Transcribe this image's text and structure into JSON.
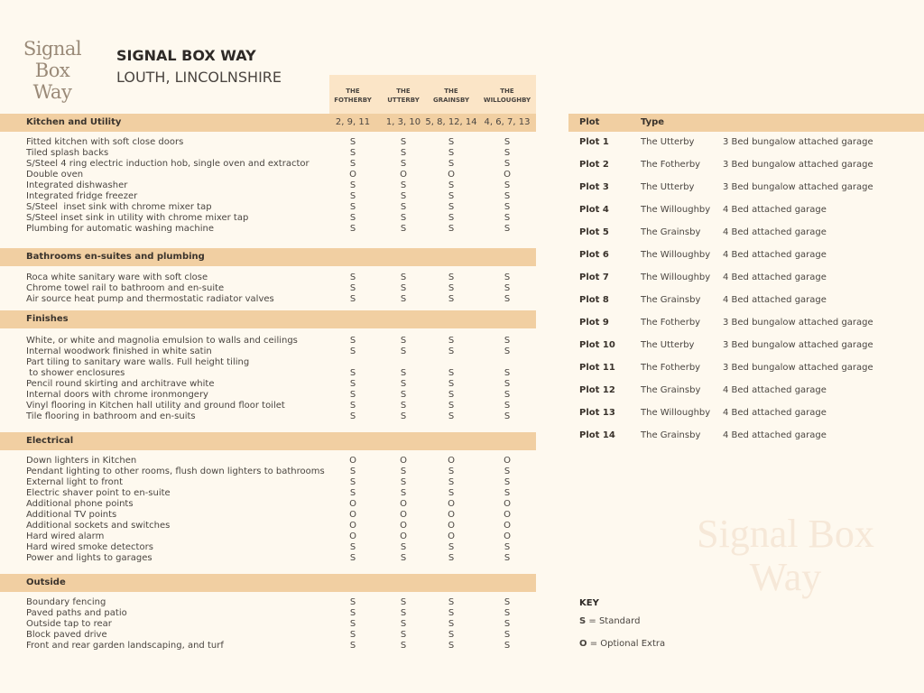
{
  "logo": {
    "line1": "Signal Box",
    "line2": "Way"
  },
  "header": {
    "title": "SIGNAL BOX WAY",
    "subtitle": "LOUTH, LINCOLNSHIRE"
  },
  "columns": [
    {
      "line1": "THE",
      "line2": "FOTHERBY",
      "plots": "2, 9, 11"
    },
    {
      "line1": "THE",
      "line2": "UTTERBY",
      "plots": "1, 3, 10"
    },
    {
      "line1": "THE",
      "line2": "GRAINSBY",
      "plots": "5, 8, 12, 14"
    },
    {
      "line1": "THE",
      "line2": "WILLOUGHBY",
      "plots": "4, 6, 7, 13"
    }
  ],
  "sections": [
    {
      "title": "Kitchen and Utility",
      "items": [
        {
          "label": "Fitted kitchen with soft close doors",
          "values": [
            "S",
            "S",
            "S",
            "S"
          ]
        },
        {
          "label": "Tiled splash backs",
          "values": [
            "S",
            "S",
            "S",
            "S"
          ]
        },
        {
          "label": "S/Steel 4 ring electric induction hob, single oven and extractor",
          "values": [
            "S",
            "S",
            "S",
            "S"
          ]
        },
        {
          "label": "Double oven",
          "values": [
            "O",
            "O",
            "O",
            "O"
          ]
        },
        {
          "label": "Integrated dishwasher",
          "values": [
            "S",
            "S",
            "S",
            "S"
          ]
        },
        {
          "label": "Integrated fridge freezer",
          "values": [
            "S",
            "S",
            "S",
            "S"
          ]
        },
        {
          "label": "S/Steel  inset sink with chrome mixer tap",
          "values": [
            "S",
            "S",
            "S",
            "S"
          ]
        },
        {
          "label": "S/Steel inset sink in utility with chrome mixer tap",
          "values": [
            "S",
            "S",
            "S",
            "S"
          ]
        },
        {
          "label": "Plumbing for automatic washing machine",
          "values": [
            "S",
            "S",
            "S",
            "S"
          ]
        }
      ]
    },
    {
      "title": "Bathrooms en-suites and plumbing",
      "items": [
        {
          "label": "Roca white sanitary ware with soft close",
          "values": [
            "S",
            "S",
            "S",
            "S"
          ]
        },
        {
          "label": "Chrome towel rail to bathroom and en-suite",
          "values": [
            "S",
            "S",
            "S",
            "S"
          ]
        },
        {
          "label": "Air source heat pump and thermostatic radiator valves",
          "values": [
            "S",
            "S",
            "S",
            "S"
          ]
        }
      ]
    },
    {
      "title": "Finishes",
      "items": [
        {
          "label": "White, or white and magnolia emulsion to walls and ceilings",
          "values": [
            "S",
            "S",
            "S",
            "S"
          ]
        },
        {
          "label": "Internal woodwork finished in white satin",
          "values": [
            "S",
            "S",
            "S",
            "S"
          ]
        },
        {
          "label": "Part tiling to sanitary ware walls. Full height tiling\n to shower enclosures",
          "values": [
            "S",
            "S",
            "S",
            "S"
          ]
        },
        {
          "label": "Pencil round skirting and architrave white",
          "values": [
            "S",
            "S",
            "S",
            "S"
          ]
        },
        {
          "label": "Internal doors with chrome ironmongery",
          "values": [
            "S",
            "S",
            "S",
            "S"
          ]
        },
        {
          "label": "Vinyl flooring in Kitchen hall utility and ground floor toilet",
          "values": [
            "S",
            "S",
            "S",
            "S"
          ]
        },
        {
          "label": "Tile flooring in bathroom and en-suits",
          "values": [
            "S",
            "S",
            "S",
            "S"
          ]
        }
      ]
    },
    {
      "title": "Electrical",
      "items": [
        {
          "label": "Down lighters in Kitchen",
          "values": [
            "O",
            "O",
            "O",
            "O"
          ]
        },
        {
          "label": "Pendant lighting to other rooms, flush down lighters to bathrooms",
          "values": [
            "S",
            "S",
            "S",
            "S"
          ]
        },
        {
          "label": "External light to front",
          "values": [
            "S",
            "S",
            "S",
            "S"
          ]
        },
        {
          "label": "Electric shaver point to en-suite",
          "values": [
            "S",
            "S",
            "S",
            "S"
          ]
        },
        {
          "label": "Additional phone points",
          "values": [
            "O",
            "O",
            "O",
            "O"
          ]
        },
        {
          "label": "Additional TV points",
          "values": [
            "O",
            "O",
            "O",
            "O"
          ]
        },
        {
          "label": "Additional sockets and switches",
          "values": [
            "O",
            "O",
            "O",
            "O"
          ]
        },
        {
          "label": "Hard wired alarm",
          "values": [
            "O",
            "O",
            "O",
            "O"
          ]
        },
        {
          "label": "Hard wired smoke detectors",
          "values": [
            "S",
            "S",
            "S",
            "S"
          ]
        },
        {
          "label": "Power and lights to garages",
          "values": [
            "S",
            "S",
            "S",
            "S"
          ]
        }
      ]
    },
    {
      "title": "Outside",
      "items": [
        {
          "label": "Boundary fencing",
          "values": [
            "S",
            "S",
            "S",
            "S"
          ]
        },
        {
          "label": "Paved paths and patio",
          "values": [
            "S",
            "S",
            "S",
            "S"
          ]
        },
        {
          "label": "Outside tap to rear",
          "values": [
            "S",
            "S",
            "S",
            "S"
          ]
        },
        {
          "label": "Block paved drive",
          "values": [
            "S",
            "S",
            "S",
            "S"
          ]
        },
        {
          "label": "Front and rear garden landscaping, and turf",
          "values": [
            "S",
            "S",
            "S",
            "S"
          ]
        }
      ]
    }
  ],
  "plots": {
    "headers": {
      "plot": "Plot",
      "type": "Type"
    },
    "rows": [
      {
        "plot": "Plot 1",
        "type": "The Utterby",
        "desc": "3 Bed bungalow attached garage"
      },
      {
        "plot": "Plot 2",
        "type": "The Fotherby",
        "desc": "3 Bed bungalow attached garage"
      },
      {
        "plot": "Plot 3",
        "type": "The Utterby",
        "desc": "3 Bed bungalow attached garage"
      },
      {
        "plot": "Plot 4",
        "type": "The Willoughby",
        "desc": "4 Bed attached garage"
      },
      {
        "plot": "Plot 5",
        "type": "The Grainsby",
        "desc": "4 Bed attached garage"
      },
      {
        "plot": "Plot 6",
        "type": "The Willoughby",
        "desc": "4 Bed attached garage"
      },
      {
        "plot": "Plot 7",
        "type": "The Willoughby",
        "desc": "4 Bed attached garage"
      },
      {
        "plot": "Plot 8",
        "type": "The Grainsby",
        "desc": "4 Bed attached garage"
      },
      {
        "plot": "Plot 9",
        "type": "The Fotherby",
        "desc": "3 Bed bungalow attached garage"
      },
      {
        "plot": "Plot 10",
        "type": "The Utterby",
        "desc": "3 Bed bungalow attached garage"
      },
      {
        "plot": "Plot 11",
        "type": "The Fotherby",
        "desc": "3 Bed bungalow attached garage"
      },
      {
        "plot": "Plot 12",
        "type": "The Grainsby",
        "desc": "4 Bed attached garage"
      },
      {
        "plot": "Plot 13",
        "type": "The Willoughby",
        "desc": "4 Bed attached garage"
      },
      {
        "plot": "Plot 14",
        "type": "The Grainsby",
        "desc": "4 Bed attached garage"
      }
    ]
  },
  "key": {
    "title": "KEY",
    "items": [
      {
        "code": "S",
        "meaning": "= Standard"
      },
      {
        "code": "O",
        "meaning": "= Optional Extra"
      }
    ]
  },
  "watermark": {
    "line1": "Signal Box",
    "line2": "Way"
  },
  "colors": {
    "band": "#f1cfa2",
    "column_header": "#fbe5c7",
    "background": "#fef9ef"
  }
}
